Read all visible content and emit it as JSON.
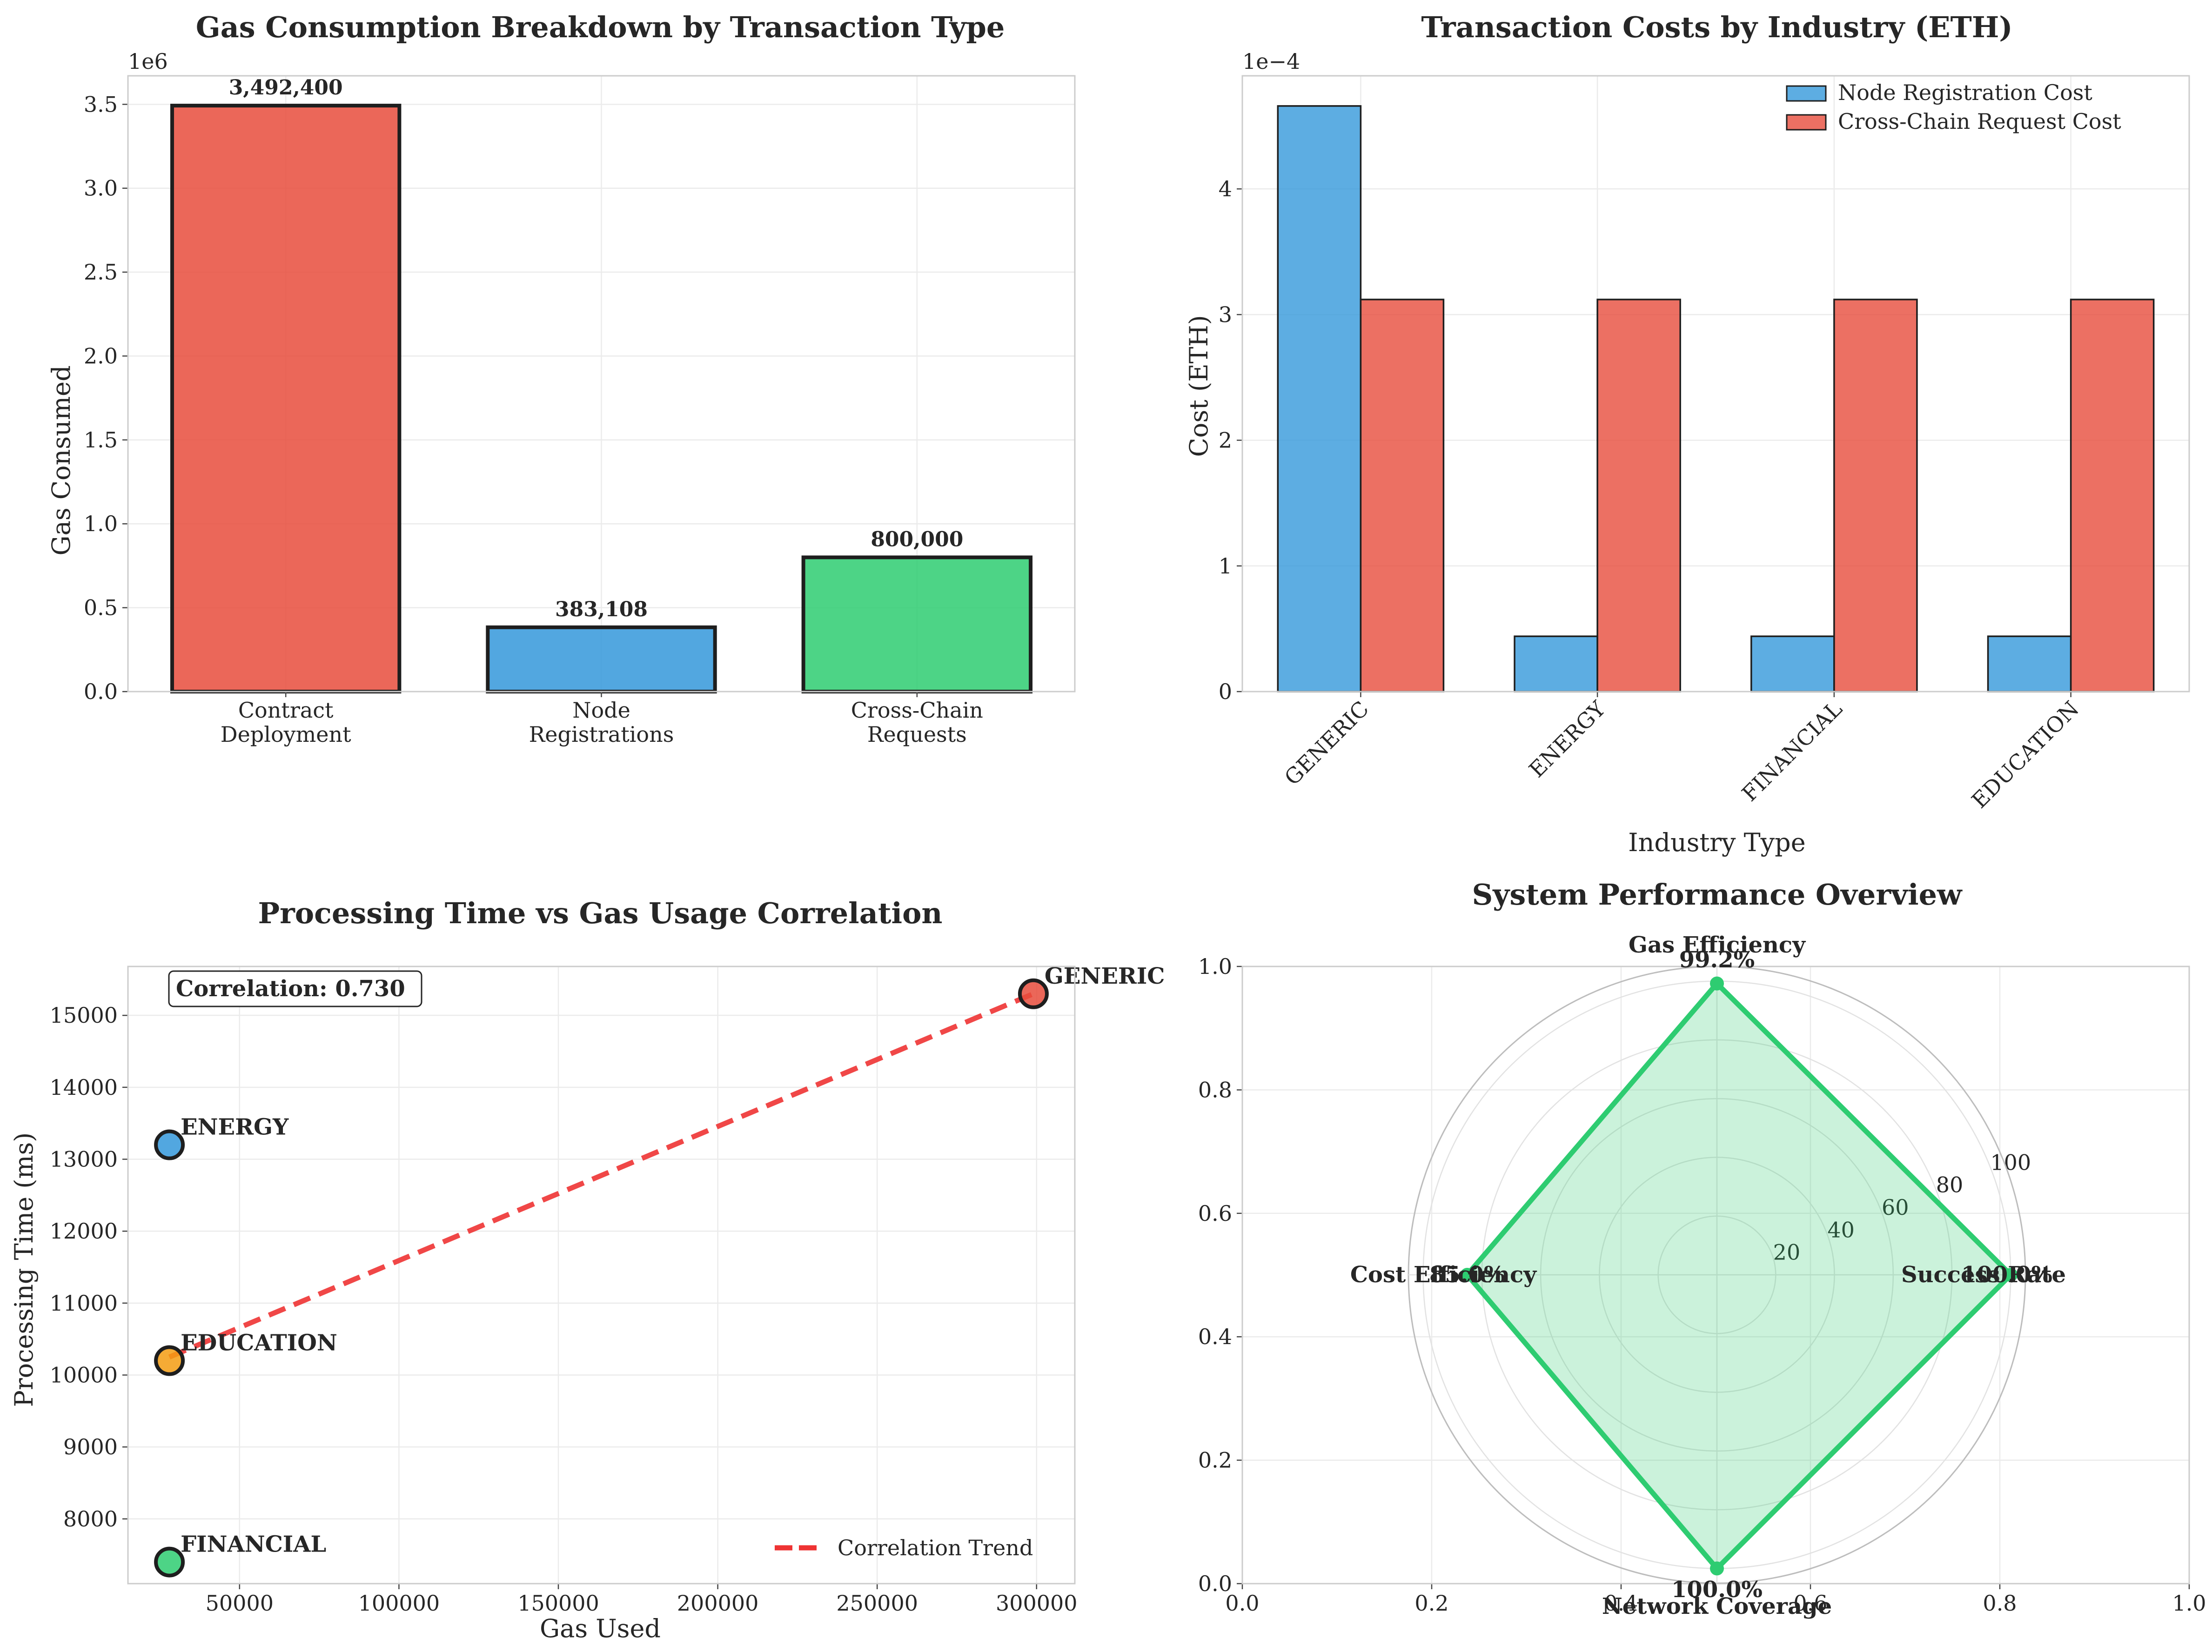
{
  "chart_data": [
    {
      "type": "bar",
      "title": "Gas Consumption Breakdown by Transaction Type",
      "xlabel": "",
      "ylabel": "Gas Consumed",
      "offset_label": "1e6",
      "categories": [
        [
          "Contract",
          "Deployment"
        ],
        [
          "Node",
          "Registrations"
        ],
        [
          "Cross-Chain",
          "Requests"
        ]
      ],
      "values": [
        3492400,
        383108,
        800000
      ],
      "value_labels": [
        "3,492,400",
        "383,108",
        "800,000"
      ],
      "colors": [
        "#e74c3c",
        "#3498db",
        "#2ecc71"
      ],
      "ylim": [
        0,
        3.67
      ],
      "yticks": [
        0,
        0.5,
        1.0,
        1.5,
        2.0,
        2.5,
        3.0,
        3.5
      ],
      "ytick_labels": [
        "0.0",
        "0.5",
        "1.0",
        "1.5",
        "2.0",
        "2.5",
        "3.0",
        "3.5"
      ],
      "grid": true
    },
    {
      "type": "bar",
      "title": "Transaction Costs by Industry (ETH)",
      "xlabel": "Industry Type",
      "ylabel": "Cost (ETH)",
      "offset_label": "1e−4",
      "categories": [
        "GENERIC",
        "ENERGY",
        "FINANCIAL",
        "EDUCATION"
      ],
      "series": [
        {
          "name": "Node Registration Cost",
          "color": "#3498db",
          "values": [
            4.66,
            0.44,
            0.44,
            0.44
          ]
        },
        {
          "name": "Cross-Chain Request Cost",
          "color": "#e74c3c",
          "values": [
            3.12,
            3.12,
            3.12,
            3.12
          ]
        }
      ],
      "ylim": [
        0,
        4.9
      ],
      "yticks": [
        0,
        1,
        2,
        3,
        4
      ],
      "ytick_labels": [
        "0",
        "1",
        "2",
        "3",
        "4"
      ],
      "legend": "top-right",
      "grid": true
    },
    {
      "type": "scatter",
      "title": "Processing Time vs Gas Usage Correlation",
      "xlabel": "Gas Used",
      "ylabel": "Processing Time (ms)",
      "points": [
        {
          "label": "GENERIC",
          "x": 299000,
          "y": 15300,
          "color": "#e74c3c"
        },
        {
          "label": "ENERGY",
          "x": 28000,
          "y": 13200,
          "color": "#3498db"
        },
        {
          "label": "EDUCATION",
          "x": 28000,
          "y": 10200,
          "color": "#f39c12"
        },
        {
          "label": "FINANCIAL",
          "x": 28000,
          "y": 7400,
          "color": "#2ecc71"
        }
      ],
      "trend_line": {
        "name": "Correlation Trend",
        "x": [
          28000,
          299000
        ],
        "y": [
          10250,
          15300
        ],
        "color": "#ee3333"
      },
      "annotation": "Correlation: 0.730",
      "xlim": [
        15000,
        312000
      ],
      "ylim": [
        7100,
        15680
      ],
      "xticks": [
        50000,
        100000,
        150000,
        200000,
        250000,
        300000
      ],
      "xtick_labels": [
        "50000",
        "100000",
        "150000",
        "200000",
        "250000",
        "300000"
      ],
      "yticks": [
        8000,
        9000,
        10000,
        11000,
        12000,
        13000,
        14000,
        15000
      ],
      "ytick_labels": [
        "8000",
        "9000",
        "10000",
        "11000",
        "12000",
        "13000",
        "14000",
        "15000"
      ],
      "legend": "bottom-right",
      "grid": true
    },
    {
      "type": "radar",
      "title": "System Performance Overview",
      "axes": [
        "Success Rate",
        "Gas Efficiency",
        "Cost Efficiency",
        "Network Coverage"
      ],
      "values": [
        100.0,
        99.2,
        85.0,
        100.0
      ],
      "value_labels": [
        "100.0%",
        "99.2%",
        "85.0%",
        "100.0%"
      ],
      "rmax": 105,
      "rticks": [
        20,
        40,
        60,
        80,
        100
      ],
      "rtick_labels": [
        "20",
        "40",
        "60",
        "80",
        "100"
      ],
      "color": "#2ecc71",
      "cartesian_xticks": [
        "0.0",
        "0.2",
        "0.4",
        "0.6",
        "0.8",
        "1.0"
      ],
      "cartesian_yticks": [
        "0.0",
        "0.2",
        "0.4",
        "0.6",
        "0.8",
        "1.0"
      ]
    }
  ]
}
